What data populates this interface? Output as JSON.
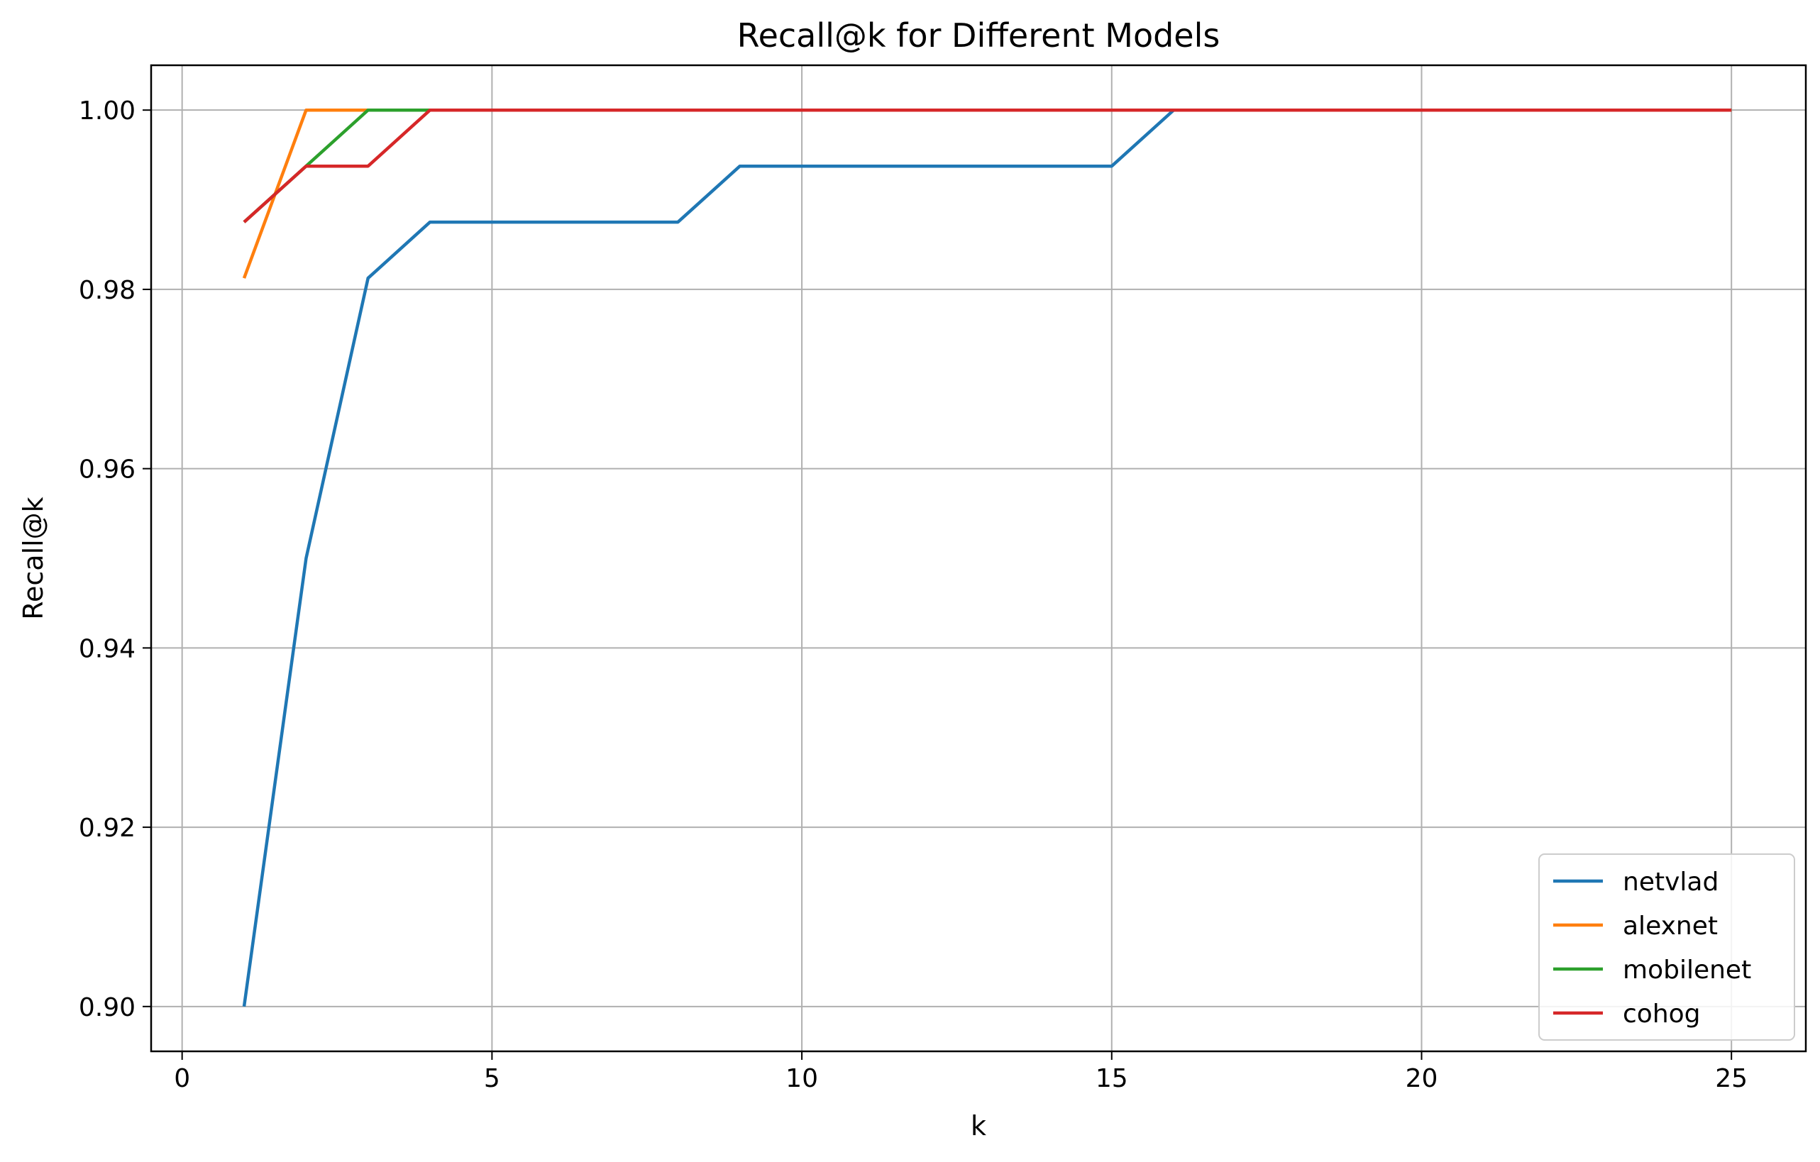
{
  "chart_data": {
    "type": "line",
    "title": "Recall@k for Different Models",
    "xlabel": "k",
    "ylabel": "Recall@k",
    "xlim": [
      -0.5,
      26.2
    ],
    "ylim": [
      0.895,
      1.005
    ],
    "xticks": [
      0,
      5,
      10,
      15,
      20,
      25
    ],
    "yticks": [
      0.9,
      0.92,
      0.94,
      0.96,
      0.98,
      1.0
    ],
    "xtick_labels": [
      "0",
      "5",
      "10",
      "15",
      "20",
      "25"
    ],
    "ytick_labels": [
      "0.90",
      "0.92",
      "0.94",
      "0.96",
      "0.98",
      "1.00"
    ],
    "grid": true,
    "legend_position": "bottom-right",
    "x": [
      1,
      2,
      3,
      4,
      5,
      6,
      7,
      8,
      9,
      10,
      11,
      12,
      13,
      14,
      15,
      16,
      17,
      18,
      19,
      20,
      21,
      22,
      23,
      24,
      25
    ],
    "series": [
      {
        "name": "netvlad",
        "color": "#1f77b4",
        "values": [
          0.9,
          0.95,
          0.98125,
          0.9875,
          0.9875,
          0.9875,
          0.9875,
          0.9875,
          0.99375,
          0.99375,
          0.99375,
          0.99375,
          0.99375,
          0.99375,
          0.99375,
          1.0,
          1.0,
          1.0,
          1.0,
          1.0,
          1.0,
          1.0,
          1.0,
          1.0,
          1.0
        ]
      },
      {
        "name": "alexnet",
        "color": "#ff7f0e",
        "values": [
          0.98125,
          1.0,
          1.0,
          1.0,
          1.0,
          1.0,
          1.0,
          1.0,
          1.0,
          1.0,
          1.0,
          1.0,
          1.0,
          1.0,
          1.0,
          1.0,
          1.0,
          1.0,
          1.0,
          1.0,
          1.0,
          1.0,
          1.0,
          1.0,
          1.0
        ]
      },
      {
        "name": "mobilenet",
        "color": "#2ca02c",
        "values": [
          0.9875,
          0.99375,
          1.0,
          1.0,
          1.0,
          1.0,
          1.0,
          1.0,
          1.0,
          1.0,
          1.0,
          1.0,
          1.0,
          1.0,
          1.0,
          1.0,
          1.0,
          1.0,
          1.0,
          1.0,
          1.0,
          1.0,
          1.0,
          1.0,
          1.0
        ]
      },
      {
        "name": "cohog",
        "color": "#d62728",
        "values": [
          0.9875,
          0.99375,
          0.99375,
          1.0,
          1.0,
          1.0,
          1.0,
          1.0,
          1.0,
          1.0,
          1.0,
          1.0,
          1.0,
          1.0,
          1.0,
          1.0,
          1.0,
          1.0,
          1.0,
          1.0,
          1.0,
          1.0,
          1.0,
          1.0,
          1.0
        ]
      }
    ]
  }
}
